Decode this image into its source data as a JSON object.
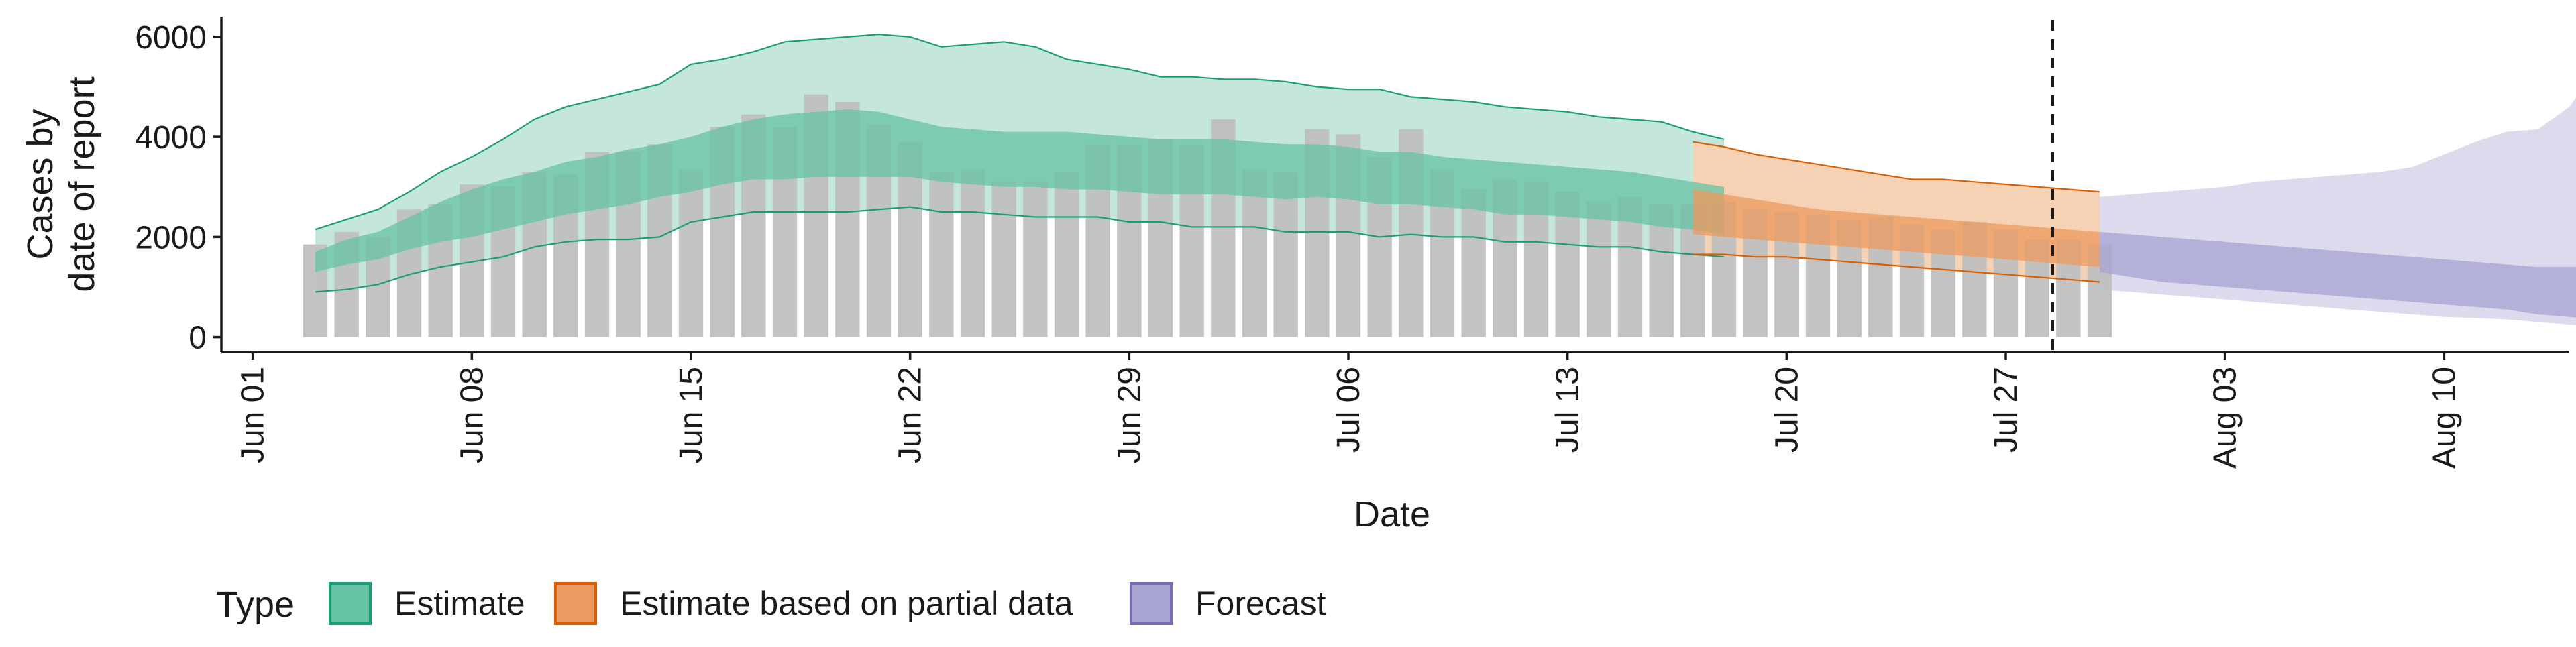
{
  "chart_data": {
    "type": "area",
    "title": "",
    "ylabel_lines": [
      "Cases by",
      "date of report"
    ],
    "xlabel": "Date",
    "x_ticks": [
      "2020-06-01",
      "2020-06-08",
      "2020-06-15",
      "2020-06-22",
      "2020-06-29",
      "2020-07-06",
      "2020-07-13",
      "2020-07-20",
      "2020-07-27",
      "2020-08-03",
      "2020-08-10"
    ],
    "x_tick_labels": [
      "Jun 01",
      "Jun 08",
      "Jun 15",
      "Jun 22",
      "Jun 29",
      "Jul 06",
      "Jul 13",
      "Jul 20",
      "Jul 27",
      "Aug 03",
      "Aug 10"
    ],
    "y_ticks": [
      0,
      2000,
      4000,
      6000
    ],
    "y_tick_labels": [
      "0",
      "2000",
      "4000",
      "6000"
    ],
    "xlim": [
      "2020-05-31",
      "2020-08-14"
    ],
    "ylim": [
      -300,
      6400
    ],
    "forecast_date": "2020-07-29",
    "grid": false,
    "legend": {
      "position": "bottom-left",
      "title": "Type",
      "items": [
        {
          "label": "Estimate",
          "fill": "#66c2a5",
          "stroke": "#1b9e77"
        },
        {
          "label": "Estimate based on partial data",
          "fill": "#ec9a5f",
          "stroke": "#d95f02"
        },
        {
          "label": "Forecast",
          "fill": "#a7a3d3",
          "stroke": "#7570b3"
        }
      ]
    },
    "colors": {
      "bars": "#c0c0c0",
      "estimate_outer": "#c4e6dc",
      "estimate_inner": "#66c2a5",
      "estimate_line": "#1b9e77",
      "partial_outer": "#f6d2b4",
      "partial_inner": "#ec9a5f",
      "partial_line": "#d95f02",
      "forecast_outer": "#dcdaec",
      "forecast_inner": "#a7a3d3",
      "forecast_line": "#7570b3"
    },
    "reported_cases": {
      "start": "2020-06-03",
      "values": [
        1850,
        2100,
        2000,
        2550,
        2650,
        3050,
        3000,
        3300,
        3250,
        3700,
        3700,
        3850,
        3350,
        4200,
        4450,
        4200,
        4850,
        4700,
        4250,
        3900,
        3300,
        3350,
        3100,
        3100,
        3300,
        3850,
        3850,
        3950,
        3850,
        4350,
        3350,
        3300,
        4150,
        4050,
        3600,
        4150,
        3350,
        2950,
        3150,
        3100,
        2900,
        2700,
        2800,
        2650,
        2650,
        2700,
        2550,
        2500,
        2450,
        2350,
        2400,
        2250,
        2150,
        2300,
        2150,
        1950,
        1950,
        1850
      ]
    },
    "series": [
      {
        "name": "Estimate",
        "start": "2020-06-03",
        "lower_90": [
          900,
          950,
          1050,
          1250,
          1400,
          1500,
          1600,
          1800,
          1900,
          1950,
          1950,
          2000,
          2300,
          2400,
          2500,
          2500,
          2500,
          2500,
          2550,
          2600,
          2500,
          2500,
          2450,
          2400,
          2400,
          2400,
          2300,
          2300,
          2200,
          2200,
          2200,
          2100,
          2100,
          2100,
          2000,
          2050,
          2000,
          2000,
          1900,
          1900,
          1850,
          1800,
          1800,
          1700,
          1650,
          1600
        ],
        "lower_50": [
          1300,
          1450,
          1550,
          1750,
          1900,
          2000,
          2150,
          2300,
          2450,
          2550,
          2650,
          2800,
          2900,
          3050,
          3150,
          3150,
          3200,
          3200,
          3200,
          3200,
          3100,
          3050,
          3000,
          3000,
          2950,
          2950,
          2900,
          2850,
          2850,
          2850,
          2800,
          2750,
          2800,
          2750,
          2650,
          2650,
          2600,
          2550,
          2450,
          2450,
          2400,
          2350,
          2300,
          2200,
          2150,
          2050
        ],
        "upper_50": [
          1700,
          1950,
          2100,
          2400,
          2700,
          2950,
          3150,
          3300,
          3500,
          3600,
          3750,
          3850,
          4000,
          4200,
          4350,
          4450,
          4500,
          4550,
          4500,
          4350,
          4200,
          4150,
          4100,
          4100,
          4100,
          4050,
          4000,
          3950,
          3950,
          3950,
          3900,
          3850,
          3850,
          3800,
          3700,
          3700,
          3600,
          3550,
          3500,
          3450,
          3400,
          3350,
          3300,
          3200,
          3100,
          3000
        ],
        "upper_90": [
          2150,
          2350,
          2550,
          2900,
          3300,
          3600,
          3950,
          4350,
          4600,
          4750,
          4900,
          5050,
          5450,
          5550,
          5700,
          5900,
          5950,
          6000,
          6050,
          6000,
          5800,
          5850,
          5900,
          5800,
          5550,
          5450,
          5350,
          5200,
          5200,
          5150,
          5150,
          5100,
          5000,
          4950,
          4950,
          4800,
          4750,
          4700,
          4600,
          4550,
          4500,
          4400,
          4350,
          4300,
          4100,
          3950
        ]
      },
      {
        "name": "Estimate based on partial data",
        "start": "2020-07-17",
        "lower_90": [
          1650,
          1650,
          1600,
          1600,
          1550,
          1500,
          1450,
          1400,
          1350,
          1300,
          1250,
          1200,
          1150,
          1100
        ],
        "lower_50": [
          2050,
          2000,
          1950,
          1900,
          1850,
          1800,
          1750,
          1700,
          1650,
          1600,
          1550,
          1500,
          1450,
          1400
        ],
        "upper_50": [
          2950,
          2850,
          2750,
          2650,
          2550,
          2500,
          2450,
          2400,
          2350,
          2300,
          2250,
          2200,
          2150,
          2100
        ],
        "upper_90": [
          3900,
          3800,
          3650,
          3550,
          3450,
          3350,
          3250,
          3150,
          3150,
          3100,
          3050,
          3000,
          2950,
          2900
        ]
      },
      {
        "name": "Forecast",
        "start": "2020-07-30",
        "lower_90": [
          950,
          900,
          850,
          800,
          750,
          700,
          650,
          600,
          550,
          500,
          450,
          400,
          380,
          350,
          300,
          250,
          200
        ],
        "lower_50": [
          1300,
          1200,
          1100,
          1050,
          1000,
          950,
          900,
          850,
          800,
          750,
          700,
          650,
          600,
          550,
          450,
          400,
          350
        ],
        "upper_50": [
          2100,
          2050,
          2000,
          1950,
          1900,
          1850,
          1800,
          1750,
          1700,
          1650,
          1600,
          1550,
          1500,
          1450,
          1400,
          1400,
          1400
        ],
        "upper_90": [
          2800,
          2850,
          2900,
          2950,
          3000,
          3100,
          3150,
          3200,
          3250,
          3300,
          3400,
          3650,
          3900,
          4100,
          4150,
          4600,
          5450
        ]
      }
    ]
  }
}
